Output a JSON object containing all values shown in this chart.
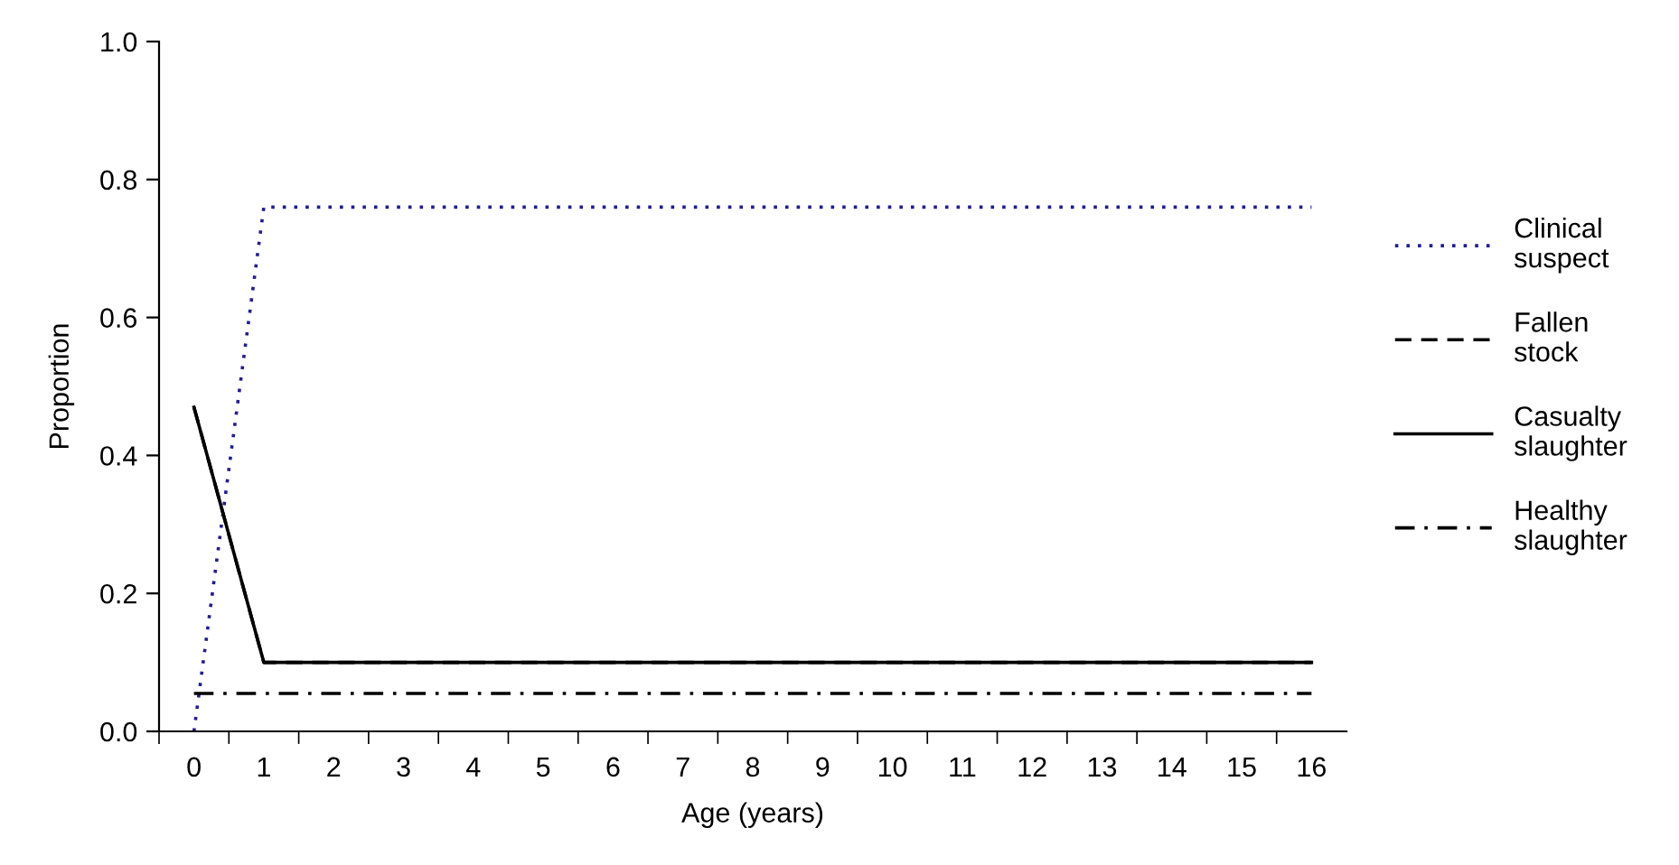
{
  "chart_data": {
    "type": "line",
    "xlabel": "Age (years)",
    "ylabel": "Proportion",
    "categories": [
      "0",
      "1",
      "2",
      "3",
      "4",
      "5",
      "6",
      "7",
      "8",
      "9",
      "10",
      "11",
      "12",
      "13",
      "14",
      "15",
      "16"
    ],
    "ylim": [
      0,
      1.0
    ],
    "yticks": [
      {
        "value": 0,
        "label": "0.0"
      },
      0.2,
      0.4,
      0.6,
      0.8,
      {
        "value": 1.0,
        "label": "1.0"
      }
    ],
    "grid": false,
    "legend": "right",
    "marker": "none",
    "series": [
      {
        "name": "Clinical suspect",
        "color": "#1f1f8f",
        "line_style": "dotted",
        "values": [
          0.0,
          0.76,
          0.76,
          0.76,
          0.76,
          0.76,
          0.76,
          0.76,
          0.76,
          0.76,
          0.76,
          0.76,
          0.76,
          0.76,
          0.76,
          0.76,
          0.76
        ]
      },
      {
        "name": "Fallen stock",
        "color": "#000000",
        "line_style": "dashed",
        "values": [
          0.47,
          0.1,
          0.1,
          0.1,
          0.1,
          0.1,
          0.1,
          0.1,
          0.1,
          0.1,
          0.1,
          0.1,
          0.1,
          0.1,
          0.1,
          0.1,
          0.1
        ]
      },
      {
        "name": "Casualty slaughter",
        "color": "#000000",
        "line_style": "solid",
        "values": [
          0.47,
          0.1,
          0.1,
          0.1,
          0.1,
          0.1,
          0.1,
          0.1,
          0.1,
          0.1,
          0.1,
          0.1,
          0.1,
          0.1,
          0.1,
          0.1,
          0.1
        ]
      },
      {
        "name": "Healthy slaughter",
        "color": "#000000",
        "line_style": "dashdot",
        "values": [
          0.055,
          0.055,
          0.055,
          0.055,
          0.055,
          0.055,
          0.055,
          0.055,
          0.055,
          0.055,
          0.055,
          0.055,
          0.055,
          0.055,
          0.055,
          0.055,
          0.055
        ]
      }
    ]
  }
}
